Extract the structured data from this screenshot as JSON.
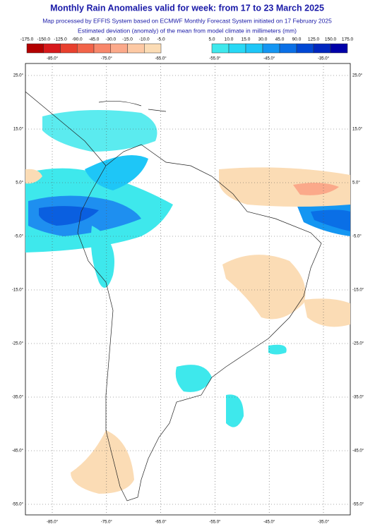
{
  "header": {
    "title": "Monthly Rain Anomalies valid for week: from 17 to 23 March 2025",
    "subtitle": "Map processed by EFFIS System based on ECMWF Monthly Forecast System initiated on 17 February 2025",
    "description": "Estimated deviation (anomaly) of the mean from model climate in millimeters (mm)"
  },
  "legend": {
    "negative": {
      "labels": [
        "-175.0",
        "-150.0",
        "-125.0",
        "-90.0",
        "-45.0",
        "-30.0",
        "-15.0",
        "-10.0",
        "-5.0"
      ],
      "colors": [
        "#b30000",
        "#d7191c",
        "#e8402e",
        "#f26449",
        "#f8876a",
        "#fba98a",
        "#fdc9a4",
        "#fbdcb5"
      ]
    },
    "positive": {
      "labels": [
        "5.0",
        "10.0",
        "15.0",
        "30.0",
        "45.0",
        "90.0",
        "125.0",
        "150.0",
        "175.0"
      ],
      "colors": [
        "#3ee8ec",
        "#27d8f5",
        "#1ec6f7",
        "#1496f2",
        "#0a6fe6",
        "#0047d4",
        "#0026bf",
        "#0000a8"
      ]
    }
  },
  "map": {
    "lon_labels": [
      "-85.0°",
      "-75.0°",
      "-65.0°",
      "-55.0°",
      "-45.0°",
      "-35.0°"
    ],
    "lat_labels": [
      "25.0°",
      "15.0°",
      "5.0°",
      "-5.0°",
      "-15.0°",
      "-25.0°",
      "-35.0°",
      "-45.0°",
      "-55.0°"
    ]
  }
}
